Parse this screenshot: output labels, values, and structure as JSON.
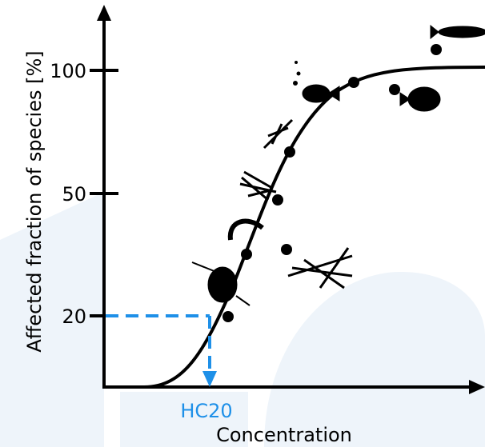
{
  "y_axis": {
    "label": "Affected fraction of species [%]",
    "ticks": [
      "100",
      "50",
      "20"
    ]
  },
  "x_axis": {
    "label": "Concentration"
  },
  "annotation": "HC20"
}
